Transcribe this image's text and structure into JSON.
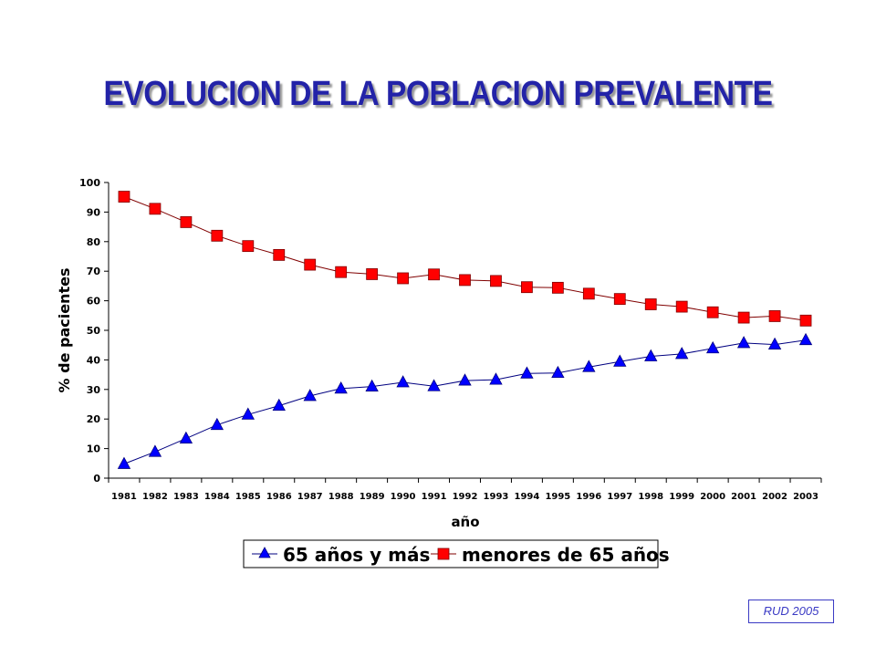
{
  "title": "EVOLUCION DE LA POBLACION PREVALENTE",
  "source_note": "RUD 2005",
  "colors": {
    "title": "#2323a8",
    "series_65_plus": "#0000ff",
    "series_under_65": "#ff0000",
    "source_note": "#3a3ac4"
  },
  "chart_data": {
    "type": "line",
    "xlabel": "año",
    "ylabel": "% de pacientes",
    "ylim": [
      0,
      100
    ],
    "yticks": [
      "0",
      "10",
      "20",
      "30",
      "40",
      "50",
      "60",
      "70",
      "80",
      "90",
      "100"
    ],
    "grid": false,
    "legend_position": "bottom",
    "categories": [
      "1981",
      "1982",
      "1983",
      "1984",
      "1985",
      "1986",
      "1987",
      "1988",
      "1989",
      "1990",
      "1991",
      "1992",
      "1993",
      "1994",
      "1995",
      "1996",
      "1997",
      "1998",
      "1999",
      "2000",
      "2001",
      "2002",
      "2003"
    ],
    "series": [
      {
        "name": "65 años y más",
        "marker": "triangle",
        "color": "#0000ff",
        "values": [
          4.8,
          8.9,
          13.4,
          18.0,
          21.5,
          24.5,
          27.8,
          30.3,
          31.0,
          32.4,
          31.1,
          33.0,
          33.3,
          35.4,
          35.6,
          37.6,
          39.4,
          41.2,
          42.0,
          43.9,
          45.7,
          45.2,
          46.7
        ]
      },
      {
        "name": "menores de 65 años",
        "marker": "square",
        "color": "#ff0000",
        "values": [
          95.2,
          91.1,
          86.6,
          82.0,
          78.5,
          75.5,
          72.2,
          69.7,
          69.0,
          67.6,
          68.9,
          67.0,
          66.7,
          64.6,
          64.4,
          62.4,
          60.6,
          58.8,
          58.0,
          56.1,
          54.3,
          54.8,
          53.3
        ]
      }
    ]
  }
}
